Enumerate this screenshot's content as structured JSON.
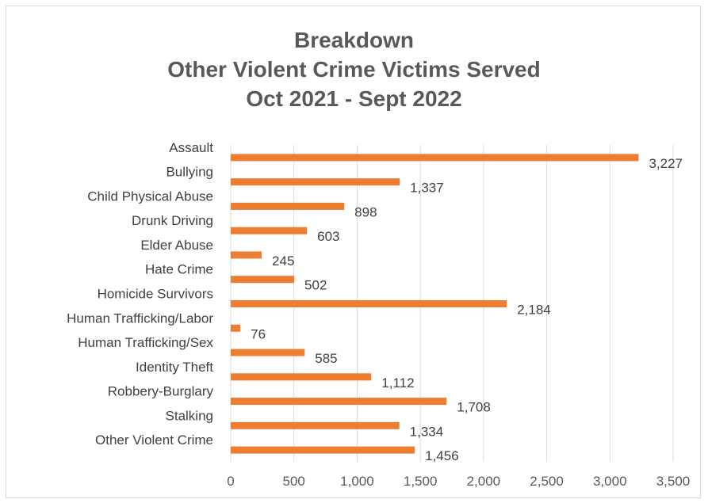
{
  "chart_data": {
    "type": "bar",
    "orientation": "horizontal",
    "title_lines": [
      "Breakdown",
      "Other Violent Crime Victims Served",
      "Oct 2021 - Sept 2022"
    ],
    "categories": [
      "Assault",
      "Bullying",
      "Child Physical Abuse",
      "Drunk Driving",
      "Elder Abuse",
      "Hate Crime",
      "Homicide Survivors",
      "Human Trafficking/Labor",
      "Human Trafficking/Sex",
      "Identity Theft",
      "Robbery-Burglary",
      "Stalking",
      "Other Violent Crime"
    ],
    "values": [
      3227,
      1337,
      898,
      603,
      245,
      502,
      2184,
      76,
      585,
      1112,
      1708,
      1334,
      1456
    ],
    "value_labels": [
      "3,227",
      "1,337",
      "898",
      "603",
      "245",
      "502",
      "2,184",
      "76",
      "585",
      "1,112",
      "1,708",
      "1,334",
      "1,456"
    ],
    "xlim": [
      0,
      3500
    ],
    "x_ticks": [
      0,
      500,
      1000,
      1500,
      2000,
      2500,
      3000,
      3500
    ],
    "x_tick_labels": [
      "0",
      "500",
      "1,000",
      "1,500",
      "2,000",
      "2,500",
      "3,000",
      "3,500"
    ],
    "grid": "vertical",
    "bar_color": "#ED7D31",
    "legend": "none"
  }
}
